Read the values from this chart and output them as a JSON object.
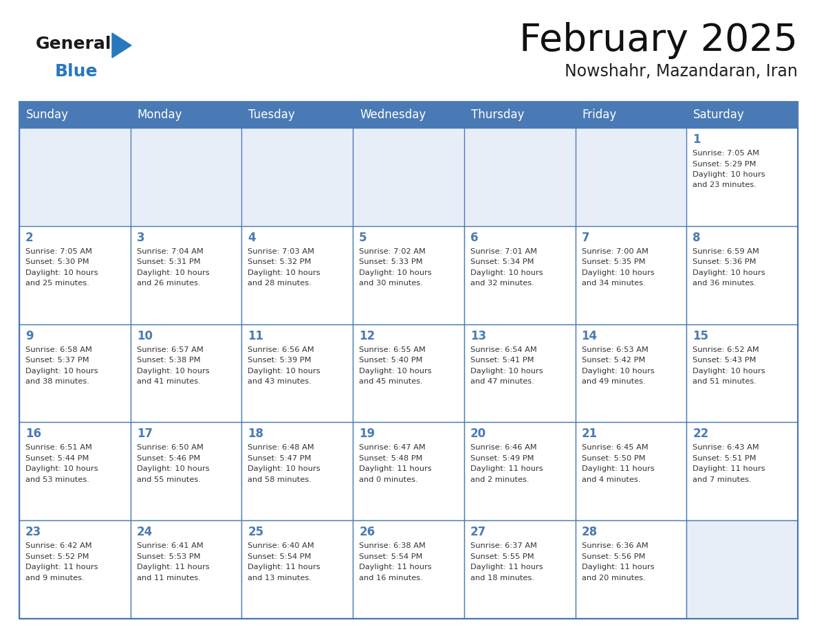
{
  "title": "February 2025",
  "subtitle": "Nowshahr, Mazandaran, Iran",
  "days_of_week": [
    "Sunday",
    "Monday",
    "Tuesday",
    "Wednesday",
    "Thursday",
    "Friday",
    "Saturday"
  ],
  "header_bg_color": "#4a7ab5",
  "header_text_color": "#FFFFFF",
  "cell_bg_color": "#FFFFFF",
  "cell_bg_alt": "#e8eef8",
  "cell_border_color": "#4a7ab5",
  "day_number_color": "#4a7ab5",
  "info_text_color": "#333333",
  "title_color": "#111111",
  "subtitle_color": "#222222",
  "logo_general_color": "#1a1a1a",
  "logo_blue_color": "#2878be",
  "logo_triangle_color": "#2878be",
  "background_color": "#FFFFFF",
  "calendar_data": [
    {
      "day": 1,
      "col": 6,
      "row": 0,
      "sunrise": "7:05 AM",
      "sunset": "5:29 PM",
      "daylight_h": "10 hours",
      "daylight_m": "23 minutes."
    },
    {
      "day": 2,
      "col": 0,
      "row": 1,
      "sunrise": "7:05 AM",
      "sunset": "5:30 PM",
      "daylight_h": "10 hours",
      "daylight_m": "25 minutes."
    },
    {
      "day": 3,
      "col": 1,
      "row": 1,
      "sunrise": "7:04 AM",
      "sunset": "5:31 PM",
      "daylight_h": "10 hours",
      "daylight_m": "26 minutes."
    },
    {
      "day": 4,
      "col": 2,
      "row": 1,
      "sunrise": "7:03 AM",
      "sunset": "5:32 PM",
      "daylight_h": "10 hours",
      "daylight_m": "28 minutes."
    },
    {
      "day": 5,
      "col": 3,
      "row": 1,
      "sunrise": "7:02 AM",
      "sunset": "5:33 PM",
      "daylight_h": "10 hours",
      "daylight_m": "30 minutes."
    },
    {
      "day": 6,
      "col": 4,
      "row": 1,
      "sunrise": "7:01 AM",
      "sunset": "5:34 PM",
      "daylight_h": "10 hours",
      "daylight_m": "32 minutes."
    },
    {
      "day": 7,
      "col": 5,
      "row": 1,
      "sunrise": "7:00 AM",
      "sunset": "5:35 PM",
      "daylight_h": "10 hours",
      "daylight_m": "34 minutes."
    },
    {
      "day": 8,
      "col": 6,
      "row": 1,
      "sunrise": "6:59 AM",
      "sunset": "5:36 PM",
      "daylight_h": "10 hours",
      "daylight_m": "36 minutes."
    },
    {
      "day": 9,
      "col": 0,
      "row": 2,
      "sunrise": "6:58 AM",
      "sunset": "5:37 PM",
      "daylight_h": "10 hours",
      "daylight_m": "38 minutes."
    },
    {
      "day": 10,
      "col": 1,
      "row": 2,
      "sunrise": "6:57 AM",
      "sunset": "5:38 PM",
      "daylight_h": "10 hours",
      "daylight_m": "41 minutes."
    },
    {
      "day": 11,
      "col": 2,
      "row": 2,
      "sunrise": "6:56 AM",
      "sunset": "5:39 PM",
      "daylight_h": "10 hours",
      "daylight_m": "43 minutes."
    },
    {
      "day": 12,
      "col": 3,
      "row": 2,
      "sunrise": "6:55 AM",
      "sunset": "5:40 PM",
      "daylight_h": "10 hours",
      "daylight_m": "45 minutes."
    },
    {
      "day": 13,
      "col": 4,
      "row": 2,
      "sunrise": "6:54 AM",
      "sunset": "5:41 PM",
      "daylight_h": "10 hours",
      "daylight_m": "47 minutes."
    },
    {
      "day": 14,
      "col": 5,
      "row": 2,
      "sunrise": "6:53 AM",
      "sunset": "5:42 PM",
      "daylight_h": "10 hours",
      "daylight_m": "49 minutes."
    },
    {
      "day": 15,
      "col": 6,
      "row": 2,
      "sunrise": "6:52 AM",
      "sunset": "5:43 PM",
      "daylight_h": "10 hours",
      "daylight_m": "51 minutes."
    },
    {
      "day": 16,
      "col": 0,
      "row": 3,
      "sunrise": "6:51 AM",
      "sunset": "5:44 PM",
      "daylight_h": "10 hours",
      "daylight_m": "53 minutes."
    },
    {
      "day": 17,
      "col": 1,
      "row": 3,
      "sunrise": "6:50 AM",
      "sunset": "5:46 PM",
      "daylight_h": "10 hours",
      "daylight_m": "55 minutes."
    },
    {
      "day": 18,
      "col": 2,
      "row": 3,
      "sunrise": "6:48 AM",
      "sunset": "5:47 PM",
      "daylight_h": "10 hours",
      "daylight_m": "58 minutes."
    },
    {
      "day": 19,
      "col": 3,
      "row": 3,
      "sunrise": "6:47 AM",
      "sunset": "5:48 PM",
      "daylight_h": "11 hours",
      "daylight_m": "0 minutes."
    },
    {
      "day": 20,
      "col": 4,
      "row": 3,
      "sunrise": "6:46 AM",
      "sunset": "5:49 PM",
      "daylight_h": "11 hours",
      "daylight_m": "2 minutes."
    },
    {
      "day": 21,
      "col": 5,
      "row": 3,
      "sunrise": "6:45 AM",
      "sunset": "5:50 PM",
      "daylight_h": "11 hours",
      "daylight_m": "4 minutes."
    },
    {
      "day": 22,
      "col": 6,
      "row": 3,
      "sunrise": "6:43 AM",
      "sunset": "5:51 PM",
      "daylight_h": "11 hours",
      "daylight_m": "7 minutes."
    },
    {
      "day": 23,
      "col": 0,
      "row": 4,
      "sunrise": "6:42 AM",
      "sunset": "5:52 PM",
      "daylight_h": "11 hours",
      "daylight_m": "9 minutes."
    },
    {
      "day": 24,
      "col": 1,
      "row": 4,
      "sunrise": "6:41 AM",
      "sunset": "5:53 PM",
      "daylight_h": "11 hours",
      "daylight_m": "11 minutes."
    },
    {
      "day": 25,
      "col": 2,
      "row": 4,
      "sunrise": "6:40 AM",
      "sunset": "5:54 PM",
      "daylight_h": "11 hours",
      "daylight_m": "13 minutes."
    },
    {
      "day": 26,
      "col": 3,
      "row": 4,
      "sunrise": "6:38 AM",
      "sunset": "5:54 PM",
      "daylight_h": "11 hours",
      "daylight_m": "16 minutes."
    },
    {
      "day": 27,
      "col": 4,
      "row": 4,
      "sunrise": "6:37 AM",
      "sunset": "5:55 PM",
      "daylight_h": "11 hours",
      "daylight_m": "18 minutes."
    },
    {
      "day": 28,
      "col": 5,
      "row": 4,
      "sunrise": "6:36 AM",
      "sunset": "5:56 PM",
      "daylight_h": "11 hours",
      "daylight_m": "20 minutes."
    }
  ]
}
